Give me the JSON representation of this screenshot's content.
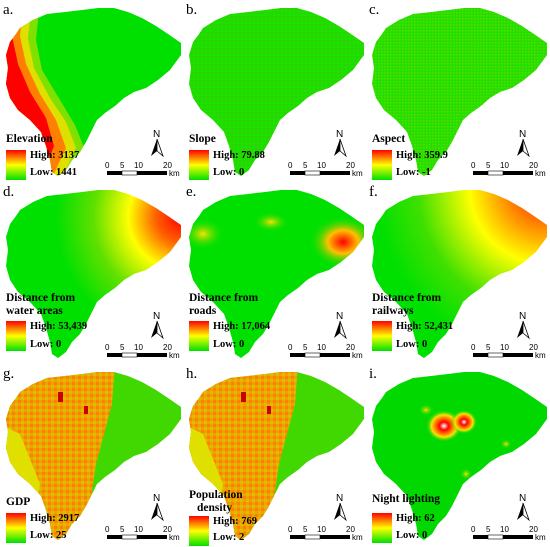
{
  "panels": [
    {
      "letter": "a.",
      "title": "Elevation",
      "title2": "",
      "high": "High: 3137",
      "low": "Low: 1441"
    },
    {
      "letter": "b.",
      "title": "Slope",
      "title2": "",
      "high": "High: 79.88",
      "low": "Low: 0"
    },
    {
      "letter": "c.",
      "title": "Aspect",
      "title2": "",
      "high": "High: 359.9",
      "low": "Low: -1"
    },
    {
      "letter": "d.",
      "title": "Distance from",
      "title2": "water areas",
      "high": "High: 53,439",
      "low": "Low: 0"
    },
    {
      "letter": "e.",
      "title": "Distance from",
      "title2": "roads",
      "high": "High: 17,064",
      "low": "Low: 0"
    },
    {
      "letter": "f.",
      "title": "Distance from",
      "title2": "railways",
      "high": "High: 52,431",
      "low": "Low: 0"
    },
    {
      "letter": "g.",
      "title": "GDP",
      "title2": "",
      "high": "High: 2917",
      "low": "Low: 25"
    },
    {
      "letter": "h.",
      "title": "Population",
      "title2": "density",
      "high": "High: 769",
      "low": "Low: 2"
    },
    {
      "letter": "i.",
      "title": "Night lighting",
      "title2": "",
      "high": "High: 62",
      "low": "Low: 0"
    }
  ],
  "north_label": "N",
  "scale": {
    "ticks": [
      "0",
      "5",
      "10",
      "20"
    ],
    "unit": "km"
  },
  "colors": {
    "high": "#ff0000",
    "mid": "#ffff00",
    "low": "#00e000"
  }
}
